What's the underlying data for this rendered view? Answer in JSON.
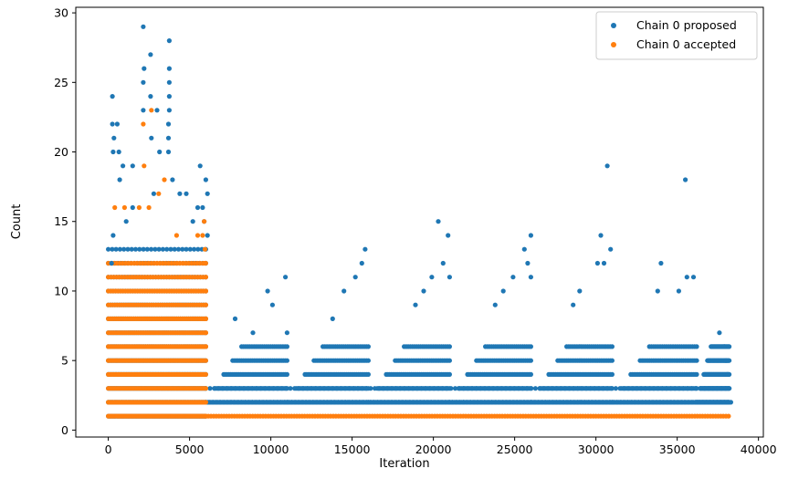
{
  "chart_data": {
    "type": "scatter",
    "title": "",
    "xlabel": "Iteration",
    "ylabel": "Count",
    "xlim": [
      -2000,
      40300
    ],
    "ylim": [
      -0.5,
      30.4
    ],
    "xticks": [
      0,
      5000,
      10000,
      15000,
      20000,
      25000,
      30000,
      35000,
      40000
    ],
    "yticks": [
      0,
      5,
      10,
      15,
      20,
      25,
      30
    ],
    "grid": false,
    "legend_position": "top-right",
    "colors": {
      "proposed": "#1f77b4",
      "accepted": "#ff7f0e"
    },
    "series": [
      {
        "name": "Chain 0 proposed",
        "color": "#1f77b4",
        "points": [
          [
            250,
            24
          ],
          [
            250,
            22
          ],
          [
            550,
            22
          ],
          [
            350,
            21
          ],
          [
            650,
            20
          ],
          [
            300,
            20
          ],
          [
            900,
            19
          ],
          [
            1500,
            19
          ],
          [
            2150,
            29
          ],
          [
            2200,
            26
          ],
          [
            2150,
            25
          ],
          [
            2150,
            23
          ],
          [
            2600,
            27
          ],
          [
            2600,
            24
          ],
          [
            2650,
            21
          ],
          [
            3150,
            20
          ],
          [
            3000,
            23
          ],
          [
            3750,
            28
          ],
          [
            3750,
            26
          ],
          [
            3750,
            25
          ],
          [
            3750,
            24
          ],
          [
            3750,
            23
          ],
          [
            3700,
            22
          ],
          [
            3700,
            21
          ],
          [
            3700,
            20
          ],
          [
            3950,
            18
          ],
          [
            4400,
            17
          ],
          [
            5650,
            19
          ],
          [
            6000,
            18
          ],
          [
            6100,
            17
          ],
          [
            5800,
            16
          ],
          [
            5500,
            16
          ],
          [
            5200,
            15
          ],
          [
            5900,
            15
          ],
          [
            6100,
            14
          ],
          [
            4800,
            17
          ],
          [
            1500,
            16
          ],
          [
            2800,
            17
          ],
          [
            700,
            18
          ],
          [
            1100,
            15
          ],
          [
            300,
            14
          ],
          [
            200,
            12
          ],
          [
            7800,
            8
          ],
          [
            9800,
            10
          ],
          [
            10900,
            11
          ],
          [
            10100,
            9
          ],
          [
            8900,
            7
          ],
          [
            11000,
            7
          ],
          [
            15800,
            13
          ],
          [
            14500,
            10
          ],
          [
            15200,
            11
          ],
          [
            15600,
            12
          ],
          [
            13800,
            8
          ],
          [
            20300,
            15
          ],
          [
            20900,
            14
          ],
          [
            19900,
            11
          ],
          [
            20600,
            12
          ],
          [
            21000,
            11
          ],
          [
            18900,
            9
          ],
          [
            19400,
            10
          ],
          [
            25600,
            13
          ],
          [
            26000,
            14
          ],
          [
            24900,
            11
          ],
          [
            25800,
            12
          ],
          [
            26000,
            11
          ],
          [
            23800,
            9
          ],
          [
            24300,
            10
          ],
          [
            30700,
            19
          ],
          [
            30300,
            14
          ],
          [
            30900,
            13
          ],
          [
            30100,
            12
          ],
          [
            30500,
            12
          ],
          [
            29000,
            10
          ],
          [
            28600,
            9
          ],
          [
            35500,
            18
          ],
          [
            34000,
            12
          ],
          [
            35600,
            11
          ],
          [
            36000,
            11
          ],
          [
            35100,
            10
          ],
          [
            33800,
            10
          ],
          [
            37600,
            7
          ],
          [
            37900,
            6
          ],
          [
            38000,
            5
          ],
          [
            38100,
            4
          ],
          [
            38200,
            3
          ],
          [
            38300,
            2
          ]
        ]
      },
      {
        "name": "Chain 0 accepted",
        "color": "#ff7f0e",
        "points": [
          [
            2150,
            22
          ],
          [
            2650,
            23
          ],
          [
            2200,
            19
          ],
          [
            3450,
            18
          ],
          [
            3100,
            17
          ],
          [
            400,
            16
          ],
          [
            1000,
            16
          ],
          [
            1900,
            16
          ],
          [
            2500,
            16
          ],
          [
            4200,
            14
          ],
          [
            5500,
            14
          ],
          [
            5900,
            15
          ],
          [
            5800,
            14
          ],
          [
            5950,
            13
          ],
          [
            5950,
            12
          ],
          [
            6000,
            11
          ],
          [
            6000,
            10
          ],
          [
            6000,
            9
          ],
          [
            6000,
            8
          ],
          [
            6000,
            7
          ],
          [
            6000,
            6
          ]
        ]
      }
    ]
  }
}
